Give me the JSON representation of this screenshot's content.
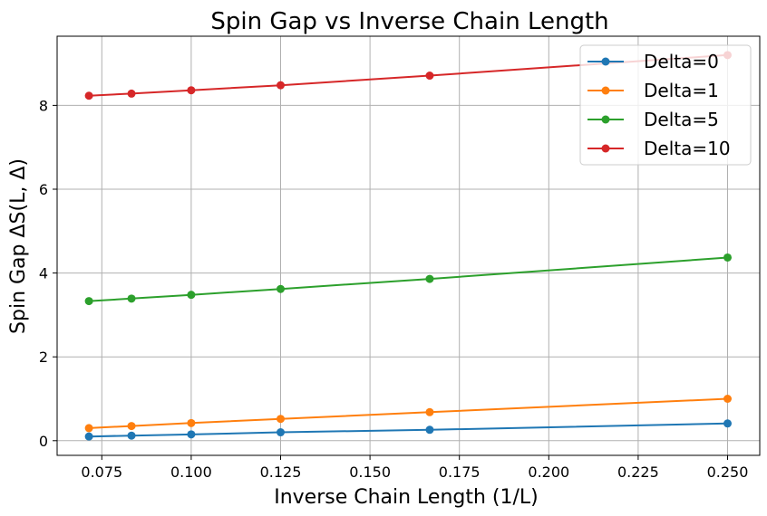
{
  "chart_data": {
    "type": "line",
    "title": "Spin Gap vs Inverse Chain Length",
    "xlabel": "Inverse Chain Length (1/L)",
    "ylabel": "Spin Gap ΔS(L, Δ)",
    "xlim": [
      0.0625,
      0.259
    ],
    "ylim": [
      -0.35,
      9.65
    ],
    "x_ticks": [
      0.075,
      0.1,
      0.125,
      0.15,
      0.175,
      0.2,
      0.225,
      0.25
    ],
    "x_tick_labels": [
      "0.075",
      "0.100",
      "0.125",
      "0.150",
      "0.175",
      "0.200",
      "0.225",
      "0.250"
    ],
    "y_ticks": [
      0,
      2,
      4,
      6,
      8
    ],
    "y_tick_labels": [
      "0",
      "2",
      "4",
      "6",
      "8"
    ],
    "grid": true,
    "legend_position": "top-right",
    "x": [
      0.0714,
      0.0833,
      0.1,
      0.125,
      0.1667,
      0.25
    ],
    "series": [
      {
        "name": "Delta=0",
        "color": "#1f77b4",
        "values": [
          0.1,
          0.12,
          0.15,
          0.2,
          0.26,
          0.41
        ]
      },
      {
        "name": "Delta=1",
        "color": "#ff7f0e",
        "values": [
          0.3,
          0.35,
          0.42,
          0.52,
          0.68,
          1.0
        ]
      },
      {
        "name": "Delta=5",
        "color": "#2ca02c",
        "values": [
          3.33,
          3.39,
          3.48,
          3.62,
          3.86,
          4.37
        ]
      },
      {
        "name": "Delta=10",
        "color": "#d62728",
        "values": [
          8.23,
          8.28,
          8.36,
          8.48,
          8.71,
          9.2
        ]
      }
    ]
  }
}
